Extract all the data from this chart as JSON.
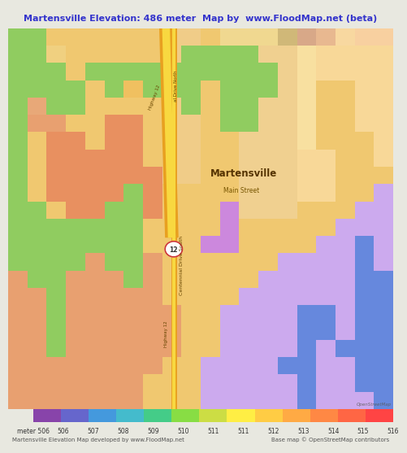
{
  "title": "Martensville Elevation: 486 meter  Map by  www.FloodMap.net (beta)",
  "title_color": "#3333cc",
  "title_bg": "#e8e8e0",
  "colorbar_values": [
    "meter 506",
    "506",
    "507",
    "508",
    "509",
    "510",
    "511",
    "511",
    "512",
    "513",
    "514",
    "515",
    "516"
  ],
  "footer_left": "Martensville Elevation Map developed by www.FloodMap.net",
  "footer_right": "Base map © OpenStreetMap contributors",
  "label_martensville": "Martensville",
  "label_main_street": "Main Street",
  "label_centennial": "Centennial Drive South",
  "label_highway12_north": "Highway 12",
  "label_divc_north": "al Drive North",
  "label_highway12_south": "Highway 12",
  "colorbar_strip": [
    "#8844aa",
    "#6666cc",
    "#4499dd",
    "#44bbcc",
    "#44cc88",
    "#88dd44",
    "#ccdd44",
    "#ffee44",
    "#ffcc44",
    "#ffaa44",
    "#ff8844",
    "#ff6644",
    "#ff4444"
  ],
  "grid_colors": [
    [
      "#90cc60",
      "#90cc60",
      "#f0c870",
      "#f0c870",
      "#f0c870",
      "#f0c870",
      "#f0c870",
      "#f0c870",
      "#f0cc88",
      "#f0cc88",
      "#f0c870",
      "#f0d890",
      "#f0d890",
      "#f0d890",
      "#d0b878",
      "#d8a888",
      "#e8b890",
      "#f8d8a0",
      "#f8d0a0",
      "#f8d0a0"
    ],
    [
      "#90cc60",
      "#90cc60",
      "#f0d080",
      "#f0c870",
      "#f0c870",
      "#f0c870",
      "#f0c870",
      "#f0c870",
      "#f0cc88",
      "#90cc60",
      "#90cc60",
      "#90cc60",
      "#90cc60",
      "#f0d090",
      "#f0d090",
      "#f8e0a0",
      "#f8d898",
      "#f8d898",
      "#f8d898",
      "#f8d898"
    ],
    [
      "#90cc60",
      "#90cc60",
      "#90cc60",
      "#f0c870",
      "#90cc60",
      "#90cc60",
      "#90cc60",
      "#90cc60",
      "#90cc60",
      "#90cc60",
      "#90cc60",
      "#90cc60",
      "#90cc60",
      "#90cc60",
      "#f0d090",
      "#f8e0a0",
      "#f8d898",
      "#f8d898",
      "#f8d898",
      "#f8d898"
    ],
    [
      "#90cc60",
      "#90cc60",
      "#90cc60",
      "#90cc60",
      "#f0c870",
      "#90cc60",
      "#f0c060",
      "#90cc60",
      "#90cc60",
      "#90cc60",
      "#f0c870",
      "#90cc60",
      "#90cc60",
      "#90cc60",
      "#f0d090",
      "#f8e0a0",
      "#f0c870",
      "#f0c870",
      "#f8d898",
      "#f8d898"
    ],
    [
      "#90cc60",
      "#e8a878",
      "#90cc60",
      "#90cc60",
      "#f0c870",
      "#f0c870",
      "#f0c870",
      "#f0c870",
      "#f0cc88",
      "#90cc60",
      "#f0c870",
      "#90cc60",
      "#90cc60",
      "#f0d090",
      "#f0d090",
      "#f8e0a0",
      "#f0c870",
      "#f0c870",
      "#f8d898",
      "#f8d898"
    ],
    [
      "#90cc60",
      "#e8a070",
      "#e8a070",
      "#f0c870",
      "#f0c870",
      "#e89060",
      "#e89060",
      "#f0c870",
      "#f0cc88",
      "#f0cc88",
      "#f0c870",
      "#90cc60",
      "#90cc60",
      "#f0d090",
      "#f0d090",
      "#f8e0a0",
      "#f0c870",
      "#f0c870",
      "#f8d898",
      "#f8d898"
    ],
    [
      "#90cc60",
      "#f0c870",
      "#e89060",
      "#e89060",
      "#f0c870",
      "#e89060",
      "#e89060",
      "#f0c870",
      "#f0cc88",
      "#f0cc88",
      "#f0c870",
      "#f0c870",
      "#f0d090",
      "#f0d090",
      "#f0d090",
      "#f8e0a0",
      "#f0c870",
      "#f0c870",
      "#f0c870",
      "#f8d898"
    ],
    [
      "#90cc60",
      "#f0c870",
      "#e89060",
      "#e89060",
      "#e89060",
      "#e89060",
      "#e89060",
      "#f0c870",
      "#f0cc88",
      "#f0cc88",
      "#f0c870",
      "#f0c870",
      "#f0d090",
      "#f0d090",
      "#f0d090",
      "#f8d898",
      "#f8d898",
      "#f0c870",
      "#f0c870",
      "#f8d898"
    ],
    [
      "#90cc60",
      "#f0c870",
      "#e89060",
      "#e89060",
      "#e89060",
      "#e89060",
      "#e89060",
      "#e89060",
      "#f0cc88",
      "#f0cc88",
      "#f0c870",
      "#f0c870",
      "#f0d090",
      "#f0d090",
      "#f0d090",
      "#f8d898",
      "#f8d898",
      "#f0c870",
      "#f0c870",
      "#f0c870"
    ],
    [
      "#90cc60",
      "#f0c870",
      "#e89060",
      "#e89060",
      "#e89060",
      "#e89060",
      "#90cc60",
      "#e89060",
      "#f0c870",
      "#f0c870",
      "#f0c870",
      "#f0c870",
      "#f0d090",
      "#f0d090",
      "#f0d090",
      "#f8d898",
      "#f8d898",
      "#f0c870",
      "#f0c870",
      "#ccaaee"
    ],
    [
      "#90cc60",
      "#90cc60",
      "#f0c870",
      "#e89060",
      "#e89060",
      "#90cc60",
      "#90cc60",
      "#e89060",
      "#f0c870",
      "#f0c870",
      "#f0c870",
      "#cc88dd",
      "#f0d090",
      "#f0d090",
      "#f0d090",
      "#f0c870",
      "#f0c870",
      "#f0c870",
      "#ccaaee",
      "#ccaaee"
    ],
    [
      "#90cc60",
      "#90cc60",
      "#90cc60",
      "#90cc60",
      "#90cc60",
      "#90cc60",
      "#90cc60",
      "#f0c870",
      "#f0c870",
      "#f0c870",
      "#f0c870",
      "#cc88dd",
      "#f0c870",
      "#f0c870",
      "#f0c870",
      "#f0c870",
      "#f0c870",
      "#ccaaee",
      "#ccaaee",
      "#ccaaee"
    ],
    [
      "#90cc60",
      "#90cc60",
      "#90cc60",
      "#90cc60",
      "#90cc60",
      "#90cc60",
      "#90cc60",
      "#f0c870",
      "#f0c870",
      "#f0c870",
      "#cc88dd",
      "#cc88dd",
      "#f0c870",
      "#f0c870",
      "#f0c870",
      "#f0c870",
      "#ccaaee",
      "#ccaaee",
      "#6688dd",
      "#ccaaee"
    ],
    [
      "#90cc60",
      "#90cc60",
      "#90cc60",
      "#90cc60",
      "#e8a070",
      "#90cc60",
      "#90cc60",
      "#e8a070",
      "#f0c870",
      "#f0c870",
      "#f0c870",
      "#f0c870",
      "#f0c870",
      "#f0c870",
      "#ccaaee",
      "#ccaaee",
      "#ccaaee",
      "#ccaaee",
      "#6688dd",
      "#ccaaee"
    ],
    [
      "#e8a070",
      "#90cc60",
      "#90cc60",
      "#e8a070",
      "#e8a070",
      "#e8a070",
      "#90cc60",
      "#e8a070",
      "#f0c870",
      "#f0c870",
      "#f0c870",
      "#f0c870",
      "#f0c870",
      "#ccaaee",
      "#ccaaee",
      "#ccaaee",
      "#ccaaee",
      "#ccaaee",
      "#6688dd",
      "#6688dd"
    ],
    [
      "#e8a070",
      "#e8a070",
      "#90cc60",
      "#e8a070",
      "#e8a070",
      "#e8a070",
      "#e8a070",
      "#e8a070",
      "#f0c870",
      "#f0c870",
      "#f0c870",
      "#f0c870",
      "#ccaaee",
      "#ccaaee",
      "#ccaaee",
      "#ccaaee",
      "#ccaaee",
      "#ccaaee",
      "#6688dd",
      "#6688dd"
    ],
    [
      "#e8a070",
      "#e8a070",
      "#90cc60",
      "#e8a070",
      "#e8a070",
      "#e8a070",
      "#e8a070",
      "#e8a070",
      "#e8a070",
      "#f0c870",
      "#f0c870",
      "#ccaaee",
      "#ccaaee",
      "#ccaaee",
      "#ccaaee",
      "#6688dd",
      "#6688dd",
      "#ccaaee",
      "#6688dd",
      "#6688dd"
    ],
    [
      "#e8a070",
      "#e8a070",
      "#90cc60",
      "#e8a070",
      "#e8a070",
      "#e8a070",
      "#e8a070",
      "#e8a070",
      "#e8a070",
      "#f0c870",
      "#f0c870",
      "#ccaaee",
      "#ccaaee",
      "#ccaaee",
      "#ccaaee",
      "#6688dd",
      "#6688dd",
      "#ccaaee",
      "#6688dd",
      "#6688dd"
    ],
    [
      "#e8a070",
      "#e8a070",
      "#90cc60",
      "#e8a070",
      "#e8a070",
      "#e8a070",
      "#e8a070",
      "#e8a070",
      "#e8a070",
      "#f0c870",
      "#f0c870",
      "#ccaaee",
      "#ccaaee",
      "#ccaaee",
      "#ccaaee",
      "#6688dd",
      "#ccaaee",
      "#6688dd",
      "#6688dd",
      "#6688dd"
    ],
    [
      "#e8a070",
      "#e8a070",
      "#e8a070",
      "#e8a070",
      "#e8a070",
      "#e8a070",
      "#e8a070",
      "#e8a070",
      "#f0c870",
      "#f0c870",
      "#ccaaee",
      "#ccaaee",
      "#ccaaee",
      "#ccaaee",
      "#6688dd",
      "#6688dd",
      "#ccaaee",
      "#ccaaee",
      "#6688dd",
      "#6688dd"
    ],
    [
      "#e8a070",
      "#e8a070",
      "#e8a070",
      "#e8a070",
      "#e8a070",
      "#e8a070",
      "#e8a070",
      "#f0c870",
      "#f0c870",
      "#f0c870",
      "#ccaaee",
      "#ccaaee",
      "#ccaaee",
      "#ccaaee",
      "#ccaaee",
      "#6688dd",
      "#ccaaee",
      "#ccaaee",
      "#6688dd",
      "#6688dd"
    ],
    [
      "#e8a070",
      "#e8a070",
      "#e8a070",
      "#e8a070",
      "#e8a070",
      "#e8a070",
      "#e8a070",
      "#f0c870",
      "#f0c870",
      "#f0c870",
      "#ccaaee",
      "#ccaaee",
      "#ccaaee",
      "#ccaaee",
      "#ccaaee",
      "#6688dd",
      "#ccaaee",
      "#ccaaee",
      "#ccaaee",
      "#6688dd"
    ]
  ]
}
